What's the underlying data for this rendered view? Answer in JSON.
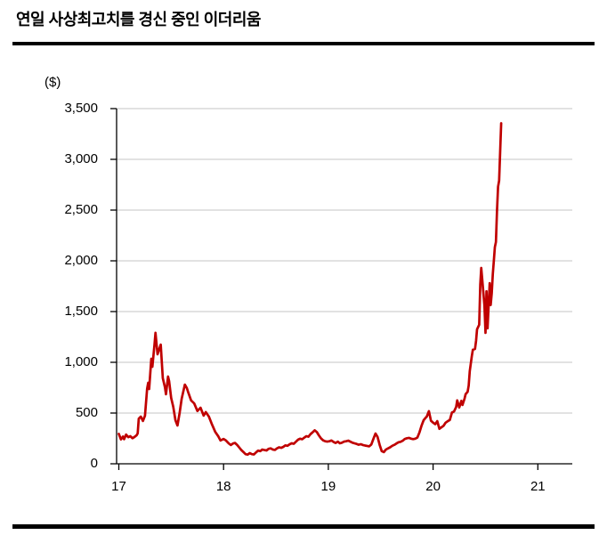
{
  "page": {
    "title": "연일 사상최고치를 경신 중인 이더리움"
  },
  "chart_data": {
    "type": "line",
    "title": "연일 사상최고치를 경신 중인 이더리움",
    "unit_label": "($)",
    "xlabel": "",
    "ylabel": "($)",
    "xlim": [
      17,
      21.33
    ],
    "ylim": [
      0,
      3500
    ],
    "grid": true,
    "legend_position": "none",
    "line_color": "#C00000",
    "gridline_color": "#D9D9D9",
    "axis_color": "#000000",
    "x_ticks": [
      {
        "value": 17,
        "label": "17"
      },
      {
        "value": 18,
        "label": "18"
      },
      {
        "value": 19,
        "label": "19"
      },
      {
        "value": 20,
        "label": "20"
      },
      {
        "value": 21,
        "label": "21"
      }
    ],
    "y_ticks": [
      {
        "value": 0,
        "label": "0"
      },
      {
        "value": 500,
        "label": "500"
      },
      {
        "value": 1000,
        "label": "1,000"
      },
      {
        "value": 1500,
        "label": "1,500"
      },
      {
        "value": 2000,
        "label": "2,000"
      },
      {
        "value": 2500,
        "label": "2,500"
      },
      {
        "value": 3000,
        "label": "3,000"
      },
      {
        "value": 3500,
        "label": "3,500"
      }
    ],
    "series": [
      {
        "name": "이더리움",
        "points": [
          [
            17.0,
            295
          ],
          [
            17.02,
            240
          ],
          [
            17.04,
            268
          ],
          [
            17.05,
            242
          ],
          [
            17.07,
            288
          ],
          [
            17.09,
            262
          ],
          [
            17.11,
            272
          ],
          [
            17.13,
            252
          ],
          [
            17.15,
            265
          ],
          [
            17.17,
            282
          ],
          [
            17.18,
            300
          ],
          [
            17.19,
            445
          ],
          [
            17.21,
            465
          ],
          [
            17.23,
            422
          ],
          [
            17.25,
            474
          ],
          [
            17.27,
            740
          ],
          [
            17.28,
            798
          ],
          [
            17.29,
            737
          ],
          [
            17.31,
            1035
          ],
          [
            17.32,
            956
          ],
          [
            17.34,
            1167
          ],
          [
            17.35,
            1290
          ],
          [
            17.37,
            1079
          ],
          [
            17.4,
            1175
          ],
          [
            17.42,
            845
          ],
          [
            17.44,
            755
          ],
          [
            17.45,
            685
          ],
          [
            17.47,
            860
          ],
          [
            17.48,
            815
          ],
          [
            17.5,
            650
          ],
          [
            17.52,
            560
          ],
          [
            17.54,
            430
          ],
          [
            17.56,
            377
          ],
          [
            17.58,
            500
          ],
          [
            17.6,
            640
          ],
          [
            17.63,
            780
          ],
          [
            17.65,
            745
          ],
          [
            17.66,
            711
          ],
          [
            17.69,
            625
          ],
          [
            17.72,
            595
          ],
          [
            17.75,
            520
          ],
          [
            17.78,
            553
          ],
          [
            17.81,
            475
          ],
          [
            17.83,
            510
          ],
          [
            17.86,
            465
          ],
          [
            17.89,
            385
          ],
          [
            17.92,
            315
          ],
          [
            17.95,
            270
          ],
          [
            17.97,
            230
          ],
          [
            18.0,
            245
          ],
          [
            18.02,
            232
          ],
          [
            18.05,
            200
          ],
          [
            18.07,
            185
          ],
          [
            18.09,
            200
          ],
          [
            18.11,
            205
          ],
          [
            18.13,
            185
          ],
          [
            18.15,
            160
          ],
          [
            18.17,
            135
          ],
          [
            18.19,
            115
          ],
          [
            18.21,
            95
          ],
          [
            18.23,
            90
          ],
          [
            18.25,
            105
          ],
          [
            18.27,
            95
          ],
          [
            18.29,
            92
          ],
          [
            18.31,
            112
          ],
          [
            18.33,
            130
          ],
          [
            18.35,
            125
          ],
          [
            18.37,
            140
          ],
          [
            18.39,
            135
          ],
          [
            18.41,
            132
          ],
          [
            18.43,
            147
          ],
          [
            18.45,
            152
          ],
          [
            18.47,
            140
          ],
          [
            18.49,
            137
          ],
          [
            18.51,
            152
          ],
          [
            18.53,
            162
          ],
          [
            18.55,
            157
          ],
          [
            18.57,
            167
          ],
          [
            18.59,
            182
          ],
          [
            18.61,
            177
          ],
          [
            18.63,
            192
          ],
          [
            18.65,
            202
          ],
          [
            18.67,
            197
          ],
          [
            18.69,
            217
          ],
          [
            18.71,
            237
          ],
          [
            18.73,
            247
          ],
          [
            18.75,
            242
          ],
          [
            18.77,
            257
          ],
          [
            18.79,
            272
          ],
          [
            18.81,
            267
          ],
          [
            18.83,
            292
          ],
          [
            18.85,
            310
          ],
          [
            18.87,
            330
          ],
          [
            18.89,
            312
          ],
          [
            18.91,
            280
          ],
          [
            18.93,
            250
          ],
          [
            18.95,
            232
          ],
          [
            18.97,
            222
          ],
          [
            18.99,
            218
          ],
          [
            19.01,
            222
          ],
          [
            19.03,
            230
          ],
          [
            19.05,
            215
          ],
          [
            19.07,
            205
          ],
          [
            19.09,
            218
          ],
          [
            19.11,
            202
          ],
          [
            19.13,
            208
          ],
          [
            19.15,
            218
          ],
          [
            19.17,
            222
          ],
          [
            19.19,
            228
          ],
          [
            19.21,
            218
          ],
          [
            19.23,
            208
          ],
          [
            19.25,
            202
          ],
          [
            19.27,
            196
          ],
          [
            19.29,
            188
          ],
          [
            19.31,
            193
          ],
          [
            19.33,
            185
          ],
          [
            19.35,
            180
          ],
          [
            19.37,
            176
          ],
          [
            19.39,
            172
          ],
          [
            19.41,
            190
          ],
          [
            19.43,
            245
          ],
          [
            19.45,
            298
          ],
          [
            19.47,
            265
          ],
          [
            19.49,
            185
          ],
          [
            19.51,
            125
          ],
          [
            19.53,
            115
          ],
          [
            19.55,
            140
          ],
          [
            19.57,
            152
          ],
          [
            19.59,
            162
          ],
          [
            19.61,
            177
          ],
          [
            19.63,
            187
          ],
          [
            19.65,
            200
          ],
          [
            19.67,
            212
          ],
          [
            19.69,
            217
          ],
          [
            19.71,
            227
          ],
          [
            19.73,
            245
          ],
          [
            19.75,
            252
          ],
          [
            19.77,
            255
          ],
          [
            19.79,
            247
          ],
          [
            19.81,
            243
          ],
          [
            19.83,
            247
          ],
          [
            19.85,
            258
          ],
          [
            19.87,
            310
          ],
          [
            19.89,
            377
          ],
          [
            19.91,
            430
          ],
          [
            19.93,
            455
          ],
          [
            19.94,
            465
          ],
          [
            19.96,
            518
          ],
          [
            19.98,
            425
          ],
          [
            20.0,
            405
          ],
          [
            20.02,
            390
          ],
          [
            20.04,
            420
          ],
          [
            20.06,
            345
          ],
          [
            20.08,
            360
          ],
          [
            20.1,
            375
          ],
          [
            20.12,
            405
          ],
          [
            20.14,
            420
          ],
          [
            20.16,
            432
          ],
          [
            20.18,
            505
          ],
          [
            20.2,
            515
          ],
          [
            20.22,
            560
          ],
          [
            20.23,
            625
          ],
          [
            20.25,
            555
          ],
          [
            20.27,
            620
          ],
          [
            20.28,
            580
          ],
          [
            20.3,
            640
          ],
          [
            20.31,
            685
          ],
          [
            20.33,
            710
          ],
          [
            20.34,
            770
          ],
          [
            20.35,
            912
          ],
          [
            20.37,
            1060
          ],
          [
            20.38,
            1125
          ],
          [
            20.4,
            1132
          ],
          [
            20.41,
            1212
          ],
          [
            20.42,
            1325
          ],
          [
            20.44,
            1370
          ],
          [
            20.45,
            1765
          ],
          [
            20.46,
            1930
          ],
          [
            20.47,
            1810
          ],
          [
            20.49,
            1560
          ],
          [
            20.5,
            1290
          ],
          [
            20.51,
            1700
          ],
          [
            20.52,
            1335
          ],
          [
            20.54,
            1780
          ],
          [
            20.55,
            1565
          ],
          [
            20.56,
            1680
          ],
          [
            20.57,
            1870
          ],
          [
            20.58,
            2005
          ],
          [
            20.59,
            2135
          ],
          [
            20.6,
            2185
          ],
          [
            20.61,
            2490
          ],
          [
            20.62,
            2730
          ],
          [
            20.63,
            2790
          ],
          [
            20.65,
            3355
          ]
        ]
      }
    ]
  }
}
